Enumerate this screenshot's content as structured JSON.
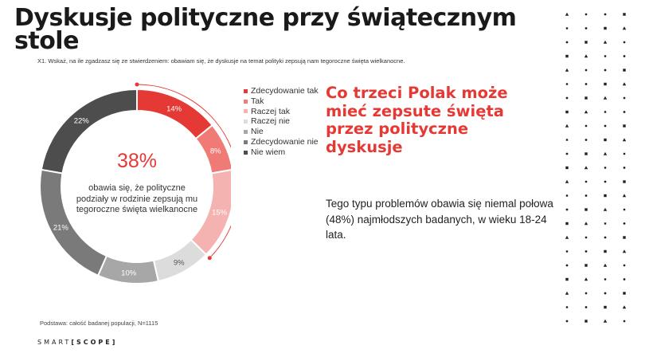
{
  "title": "Dyskusje polityczne przy świątecznym stole",
  "question": "X1. Wskaż, na ile zgadzasz się ze stwierdzeniem: obawiam się, że dyskusje na temat polityki zepsują nam tegoroczne święta wielkanocne.",
  "center": {
    "value": "38%",
    "text": "obawia się, że polityczne podziały w rodzinie zepsują mu tegoroczne święta wielkanocne"
  },
  "chart_data": {
    "type": "pie",
    "donut": true,
    "categories": [
      "Zdecydowanie tak",
      "Tak",
      "Raczej tak",
      "Raczej nie",
      "Nie",
      "Zdecydowanie nie",
      "Nie wiem"
    ],
    "values": [
      14,
      8,
      15,
      9,
      10,
      21,
      22
    ],
    "labels": [
      "14%",
      "8%",
      "15%",
      "9%",
      "10%",
      "21%",
      "22%"
    ],
    "colors": [
      "#e53935",
      "#ef7a76",
      "#f4b3b1",
      "#dcdcdc",
      "#a7a7a7",
      "#7a7a7a",
      "#4d4d4d"
    ],
    "legend_position": "right",
    "highlight_bracket": {
      "covers": [
        "Zdecydowanie tak",
        "Tak",
        "Raczej tak"
      ],
      "color": "#e53935"
    }
  },
  "headline": "Co trzeci Polak może mieć zepsute święta przez polityczne dyskusje",
  "body": "Tego typu problemów obawia się niemal połowa (48%) najmłodszych badanych, w wieku 18-24 lata.",
  "footnote": "Podstawa: całość badanej populacji, N=1115",
  "logo": {
    "left": "SMART",
    "right": "[SCOPE]"
  }
}
